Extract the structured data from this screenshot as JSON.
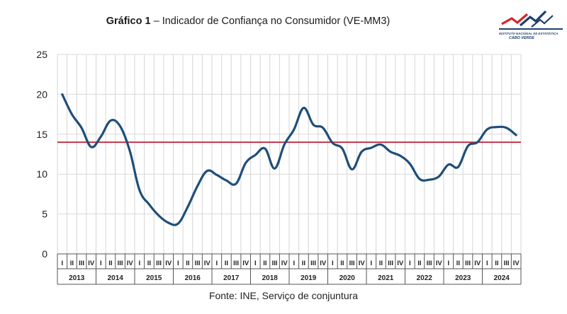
{
  "header": {
    "title_bold": "Gráfico 1",
    "title_rest": " – Indicador de Confiança no Consumidor (VE-MM3)"
  },
  "logo": {
    "line1": "INSTITUTO NACIONAL DE ESTATÍSTICA",
    "line2": "CABO VERDE",
    "colors": {
      "red": "#d4262c",
      "blue": "#1f3f6b"
    }
  },
  "footer": {
    "source": "Fonte: INE, Serviço de conjuntura"
  },
  "chart_data": {
    "type": "line",
    "title": "Gráfico 1 – Indicador de Confiança no Consumidor (VE-MM3)",
    "xlabel": "",
    "ylabel": "",
    "ylim": [
      0,
      25
    ],
    "yticks": [
      0,
      5,
      10,
      15,
      20,
      25
    ],
    "grid": "vertical",
    "quarters": [
      "I",
      "II",
      "III",
      "IV"
    ],
    "years": [
      "2013",
      "2014",
      "2015",
      "2016",
      "2017",
      "2018",
      "2019",
      "2020",
      "2021",
      "2022",
      "2023",
      "2024"
    ],
    "series": [
      {
        "name": "",
        "color": "#1f4e79",
        "values": [
          20.0,
          17.5,
          15.8,
          13.4,
          14.7,
          16.7,
          16.0,
          12.9,
          8.0,
          6.2,
          4.8,
          3.9,
          3.8,
          5.9,
          8.5,
          10.4,
          9.9,
          9.2,
          8.8,
          11.4,
          12.4,
          13.2,
          10.7,
          13.7,
          15.6,
          18.3,
          16.2,
          15.8,
          13.9,
          13.2,
          10.6,
          12.8,
          13.3,
          13.7,
          12.8,
          12.3,
          11.3,
          9.4,
          9.3,
          9.7,
          11.2,
          10.9,
          13.5,
          14.0,
          15.6,
          15.9,
          15.8,
          14.9
        ]
      }
    ],
    "reference_line": {
      "value": 14.0,
      "color": "#c0354a"
    }
  }
}
